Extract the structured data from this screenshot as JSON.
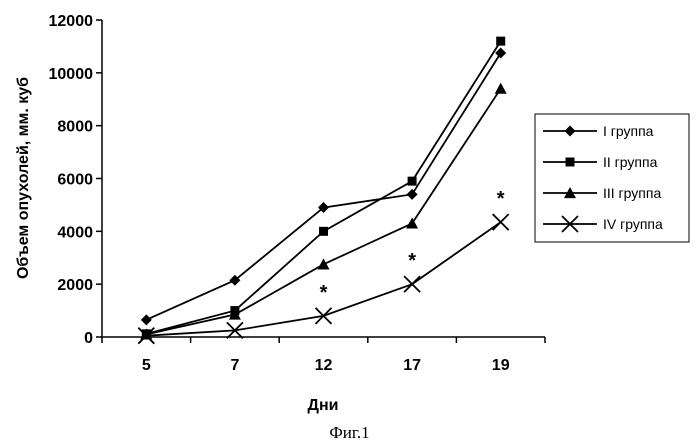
{
  "chart_data": {
    "type": "line",
    "categories": [
      "5",
      "7",
      "12",
      "17",
      "19"
    ],
    "series": [
      {
        "name": "I группа",
        "marker": "diamond",
        "values": [
          650,
          2150,
          4900,
          5400,
          10750
        ]
      },
      {
        "name": "II группа",
        "marker": "square",
        "values": [
          120,
          1000,
          4000,
          5900,
          11200
        ]
      },
      {
        "name": "III группа",
        "marker": "triangle",
        "values": [
          100,
          850,
          2750,
          4300,
          9400
        ]
      },
      {
        "name": "IV группа",
        "marker": "x",
        "values": [
          50,
          250,
          800,
          2000,
          4350
        ]
      }
    ],
    "annotations": [
      {
        "category": "12",
        "text": "*"
      },
      {
        "category": "17",
        "text": "*"
      },
      {
        "category": "19",
        "text": "*"
      }
    ],
    "ylim": [
      0,
      12000
    ],
    "ytick_step": 2000,
    "yticks": [
      "0",
      "2000",
      "4000",
      "6000",
      "8000",
      "10000",
      "12000"
    ],
    "xlabel": "Дни",
    "ylabel": "Объем опухолей, мм. куб",
    "legend_position": "right",
    "grid": false,
    "line_color": "#000000"
  },
  "caption": "Фиг.1"
}
